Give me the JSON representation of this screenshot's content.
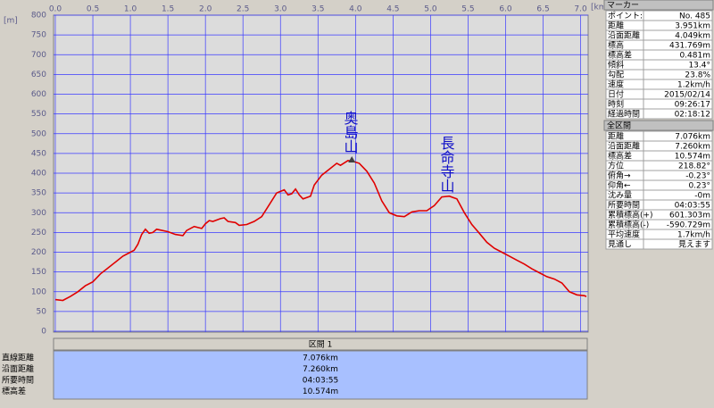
{
  "chart_data": {
    "type": "line",
    "x_label": "[km]",
    "y_label": "[m]",
    "x": [
      0.0,
      0.1,
      0.2,
      0.3,
      0.4,
      0.5,
      0.6,
      0.7,
      0.8,
      0.9,
      1.0,
      1.05,
      1.1,
      1.15,
      1.2,
      1.25,
      1.3,
      1.35,
      1.4,
      1.5,
      1.6,
      1.7,
      1.75,
      1.85,
      1.95,
      2.0,
      2.05,
      2.1,
      2.2,
      2.25,
      2.3,
      2.4,
      2.45,
      2.55,
      2.65,
      2.75,
      2.85,
      2.95,
      3.05,
      3.1,
      3.15,
      3.2,
      3.25,
      3.3,
      3.4,
      3.45,
      3.55,
      3.65,
      3.75,
      3.8,
      3.9,
      3.95,
      4.05,
      4.15,
      4.25,
      4.35,
      4.45,
      4.55,
      4.65,
      4.75,
      4.85,
      4.95,
      5.05,
      5.15,
      5.25,
      5.35,
      5.45,
      5.55,
      5.65,
      5.75,
      5.85,
      5.95,
      6.05,
      6.15,
      6.25,
      6.35,
      6.45,
      6.55,
      6.65,
      6.75,
      6.85,
      6.95,
      7.05,
      7.076
    ],
    "series": [
      {
        "color": "#e00000",
        "values": [
          80,
          78,
          88,
          100,
          115,
          125,
          145,
          160,
          175,
          190,
          200,
          205,
          220,
          245,
          258,
          248,
          250,
          258,
          256,
          252,
          245,
          242,
          255,
          265,
          260,
          272,
          280,
          278,
          285,
          287,
          278,
          275,
          268,
          270,
          278,
          290,
          320,
          350,
          358,
          345,
          348,
          360,
          345,
          335,
          342,
          370,
          395,
          410,
          425,
          420,
          432,
          431,
          425,
          405,
          375,
          330,
          300,
          292,
          290,
          302,
          305,
          305,
          318,
          340,
          342,
          335,
          300,
          270,
          248,
          225,
          210,
          200,
          190,
          180,
          170,
          158,
          148,
          138,
          132,
          122,
          100,
          92,
          90,
          88
        ]
      }
    ],
    "marker": {
      "x": 3.951,
      "y": 431.769
    },
    "annotations": [
      "奥島山",
      "長命寺山"
    ],
    "xlim": [
      0,
      7.1
    ],
    "ylim": [
      0,
      800
    ],
    "xticks": [
      {
        "value": 0,
        "label": "0.0"
      },
      0.5,
      {
        "value": 1,
        "label": "1.0"
      },
      1.5,
      {
        "value": 2,
        "label": "2.0"
      },
      2.5,
      {
        "value": 3,
        "label": "3.0"
      },
      3.5,
      {
        "value": 4,
        "label": "4.0"
      },
      4.5,
      {
        "value": 5,
        "label": "5.0"
      },
      5.5,
      {
        "value": 6,
        "label": "6.0"
      },
      6.5,
      {
        "value": 7,
        "label": "7.0"
      }
    ],
    "yticks": [
      0,
      50,
      100,
      150,
      200,
      250,
      300,
      350,
      400,
      450,
      500,
      550,
      600,
      650,
      700,
      750,
      800
    ],
    "grid": true
  },
  "section": {
    "title": "区間 1",
    "rows": [
      [
        "直線距離",
        "7.076km"
      ],
      [
        "沿面距離",
        "7.260km"
      ],
      [
        "所要時間",
        "04:03:55"
      ],
      [
        "標高差",
        "10.574m"
      ]
    ]
  },
  "marker_panel": {
    "title": "マーカー",
    "rows": [
      [
        "ポイント:",
        "No. 485"
      ],
      [
        "距離",
        "3.951km"
      ],
      [
        "沿面距離",
        "4.049km"
      ],
      [
        "標高",
        "431.769m"
      ],
      [
        "標高差",
        "0.481m"
      ],
      [
        "傾斜",
        "13.4°"
      ],
      [
        "勾配",
        "23.8%"
      ],
      [
        "速度",
        "1.2km/h"
      ],
      [
        "日付",
        "2015/02/14"
      ],
      [
        "時刻",
        "09:26:17"
      ],
      [
        "経過時間",
        "02:18:12"
      ]
    ]
  },
  "total_panel": {
    "title": "全区間",
    "rows": [
      [
        "距離",
        "7.076km"
      ],
      [
        "沿面距離",
        "7.260km"
      ],
      [
        "標高差",
        "10.574m"
      ],
      [
        "方位",
        "218.82°"
      ],
      [
        "俯角→",
        "-0.23°"
      ],
      [
        "仰角←",
        "0.23°"
      ],
      [
        "沈み量",
        "-0m"
      ],
      [
        "所要時間",
        "04:03:55"
      ],
      [
        "累積標高(+)",
        "601.303m"
      ],
      [
        "累積標高(-)",
        "-590.729m"
      ],
      [
        "平均速度",
        "1.7km/h"
      ],
      [
        "見通し",
        "見えます"
      ]
    ]
  }
}
